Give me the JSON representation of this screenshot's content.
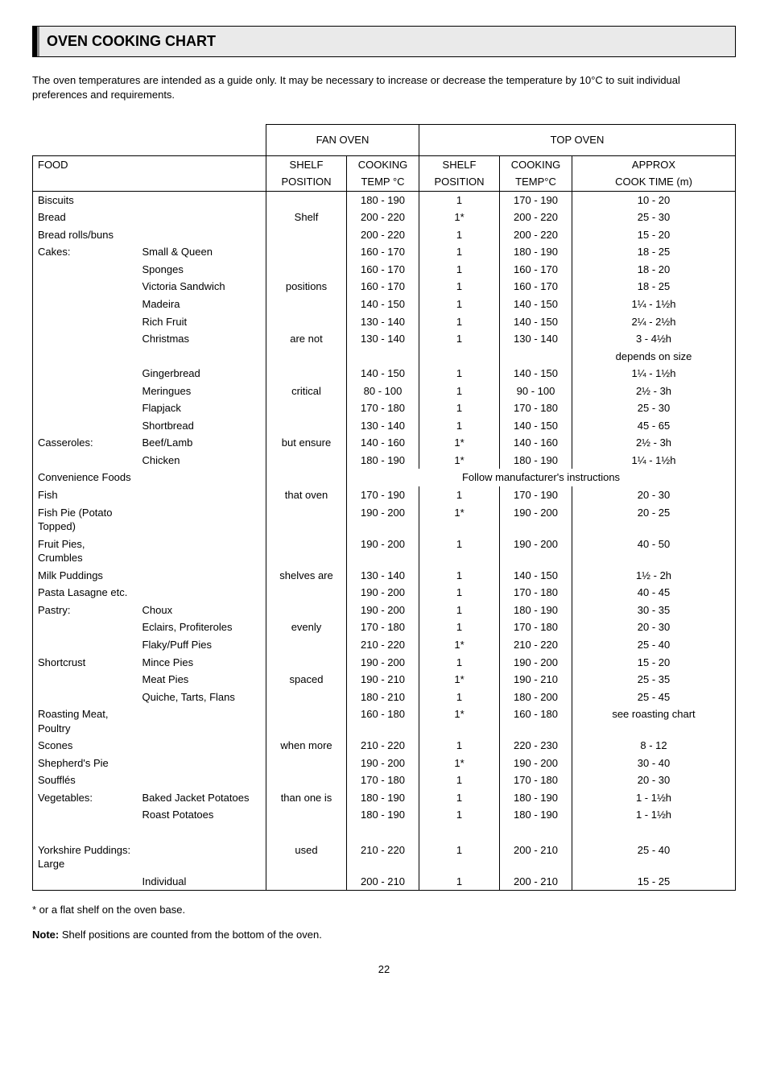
{
  "header": "OVEN COOKING CHART",
  "intro": "The oven temperatures are intended as a guide only.  It may be necessary to increase or decrease the temperature by 10°C to suit individual preferences and requirements.",
  "section_headers": {
    "fan": "FAN OVEN",
    "top": "TOP OVEN"
  },
  "col_headers": {
    "food": "FOOD",
    "shelf_pos": "SHELF",
    "shelf_pos2": "POSITION",
    "cooking_temp": "COOKING",
    "cooking_temp2": "TEMP °C",
    "cooking_tempc": "TEMP°C",
    "approx": "APPROX",
    "approx2": "COOK TIME (m)"
  },
  "fan_shelf_words": [
    "Shelf",
    "positions",
    "are not",
    "critical",
    "but ensure",
    "that oven",
    "shelves are",
    "evenly",
    "spaced",
    "when more",
    "than one is",
    "used"
  ],
  "rows": [
    {
      "f1": "Biscuits",
      "f2": "",
      "ft": "180 - 190",
      "ts": "1",
      "tt": "170 - 190",
      "ct": "10 - 20"
    },
    {
      "f1": "Bread",
      "f2": "",
      "ft": "200 - 220",
      "ts": "1*",
      "tt": "200 - 220",
      "ct": "25 - 30"
    },
    {
      "f1": "Bread rolls/buns",
      "f2": "",
      "ft": "200 - 220",
      "ts": "1",
      "tt": "200 - 220",
      "ct": "15 - 20"
    },
    {
      "f1": "Cakes:",
      "f2": "Small & Queen",
      "ft": "160 - 170",
      "ts": "1",
      "tt": "180 - 190",
      "ct": "18 - 25"
    },
    {
      "f1": "",
      "f2": "Sponges",
      "ft": "160 - 170",
      "ts": "1",
      "tt": "160 - 170",
      "ct": "18 - 20"
    },
    {
      "f1": "",
      "f2": "Victoria Sandwich",
      "ft": "160 - 170",
      "ts": "1",
      "tt": "160 - 170",
      "ct": "18 - 25"
    },
    {
      "f1": "",
      "f2": "Madeira",
      "ft": "140 - 150",
      "ts": "1",
      "tt": "140 - 150",
      "ct": "1¼ - 1½h"
    },
    {
      "f1": "",
      "f2": "Rich Fruit",
      "ft": "130 - 140",
      "ts": "1",
      "tt": "140 - 150",
      "ct": "2¼ - 2½h"
    },
    {
      "f1": "",
      "f2": "Christmas",
      "ft": "130 - 140",
      "ts": "1",
      "tt": "130 - 140",
      "ct": "3 - 4½h"
    },
    {
      "f1": "",
      "f2": "",
      "ft": "",
      "ts": "",
      "tt": "",
      "ct": "depends on size"
    },
    {
      "f1": "",
      "f2": "Gingerbread",
      "ft": "140 - 150",
      "ts": "1",
      "tt": "140 - 150",
      "ct": "1¼ - 1½h"
    },
    {
      "f1": "",
      "f2": "Meringues",
      "ft": "80 - 100",
      "ts": "1",
      "tt": "90 - 100",
      "ct": "2½ - 3h"
    },
    {
      "f1": "",
      "f2": "Flapjack",
      "ft": "170 - 180",
      "ts": "1",
      "tt": "170 - 180",
      "ct": "25 - 30"
    },
    {
      "f1": "",
      "f2": "Shortbread",
      "ft": "130 - 140",
      "ts": "1",
      "tt": "140 - 150",
      "ct": "45 - 65"
    },
    {
      "f1": "Casseroles:",
      "f2": "Beef/Lamb",
      "ft": "140 - 160",
      "ts": "1*",
      "tt": "140 - 160",
      "ct": "2½ - 3h"
    },
    {
      "f1": "",
      "f2": "Chicken",
      "ft": "180 - 190",
      "ts": "1*",
      "tt": "180 - 190",
      "ct": "1¼ - 1½h"
    }
  ],
  "conv_row": {
    "label": "Convenience Foods",
    "text": "Follow manufacturer's instructions"
  },
  "rows2": [
    {
      "f1": "Fish",
      "f2": "",
      "ft": "170 - 190",
      "ts": "1",
      "tt": "170 - 190",
      "ct": "20 - 30"
    },
    {
      "f1": "Fish Pie (Potato Topped)",
      "f2": "",
      "ft": "190 - 200",
      "ts": "1*",
      "tt": "190 - 200",
      "ct": "20 - 25"
    },
    {
      "f1": "Fruit Pies, Crumbles",
      "f2": "",
      "ft": "190 - 200",
      "ts": "1",
      "tt": "190 - 200",
      "ct": "40 - 50"
    },
    {
      "f1": "Milk Puddings",
      "f2": "",
      "ft": "130 - 140",
      "ts": "1",
      "tt": "140 - 150",
      "ct": "1½ - 2h"
    },
    {
      "f1": "Pasta Lasagne etc.",
      "f2": "",
      "ft": "190 - 200",
      "ts": "1",
      "tt": "170 - 180",
      "ct": "40 - 45"
    },
    {
      "f1": "Pastry:",
      "f2": "Choux",
      "ft": "190 - 200",
      "ts": "1",
      "tt": "180 - 190",
      "ct": "30 - 35"
    },
    {
      "f1": "",
      "f2": "Eclairs, Profiteroles",
      "ft": "170 - 180",
      "ts": "1",
      "tt": "170 - 180",
      "ct": "20 - 30"
    },
    {
      "f1": "",
      "f2": "Flaky/Puff Pies",
      "ft": "210 - 220",
      "ts": "1*",
      "tt": "210 - 220",
      "ct": "25 - 40"
    },
    {
      "f1": "Shortcrust",
      "f2": "Mince Pies",
      "ft": "190 - 200",
      "ts": "1",
      "tt": "190 - 200",
      "ct": "15 - 20"
    },
    {
      "f1": "",
      "f2": "Meat Pies",
      "ft": "190 - 210",
      "ts": "1*",
      "tt": "190 - 210",
      "ct": "25 - 35"
    },
    {
      "f1": "",
      "f2": "Quiche, Tarts, Flans",
      "ft": "180 - 210",
      "ts": "1",
      "tt": "180 - 200",
      "ct": "25 - 45"
    },
    {
      "f1": "Roasting Meat, Poultry",
      "f2": "",
      "ft": "160 - 180",
      "ts": "1*",
      "tt": "160 - 180",
      "ct": "see roasting chart"
    },
    {
      "f1": "Scones",
      "f2": "",
      "ft": "210 - 220",
      "ts": "1",
      "tt": "220 - 230",
      "ct": "8 - 12"
    },
    {
      "f1": "Shepherd's Pie",
      "f2": "",
      "ft": "190 - 200",
      "ts": "1*",
      "tt": "190 - 200",
      "ct": "30 - 40"
    },
    {
      "f1": "Soufflés",
      "f2": "",
      "ft": "170 - 180",
      "ts": "1",
      "tt": "170 - 180",
      "ct": "20 - 30"
    },
    {
      "f1": "Vegetables:",
      "f2": "Baked Jacket Potatoes",
      "ft": "180 - 190",
      "ts": "1",
      "tt": "180 - 190",
      "ct": "1 - 1½h"
    },
    {
      "f1": "",
      "f2": "Roast Potatoes",
      "ft": "180 - 190",
      "ts": "1",
      "tt": "180 - 190",
      "ct": "1 - 1½h"
    }
  ],
  "rows3": [
    {
      "f1": "Yorkshire Puddings: Large",
      "f2": "",
      "ft": "210 - 220",
      "ts": "1",
      "tt": "200 - 210",
      "ct": "25 - 40"
    },
    {
      "f1": "",
      "f2": "Individual",
      "ft": "200 - 210",
      "ts": "1",
      "tt": "200 - 210",
      "ct": "15 - 25"
    }
  ],
  "footnote1": "* or a flat shelf on the oven base.",
  "footnote2_bold": "Note:",
  "footnote2_rest": " Shelf positions are counted from the bottom of the oven.",
  "page": "22"
}
